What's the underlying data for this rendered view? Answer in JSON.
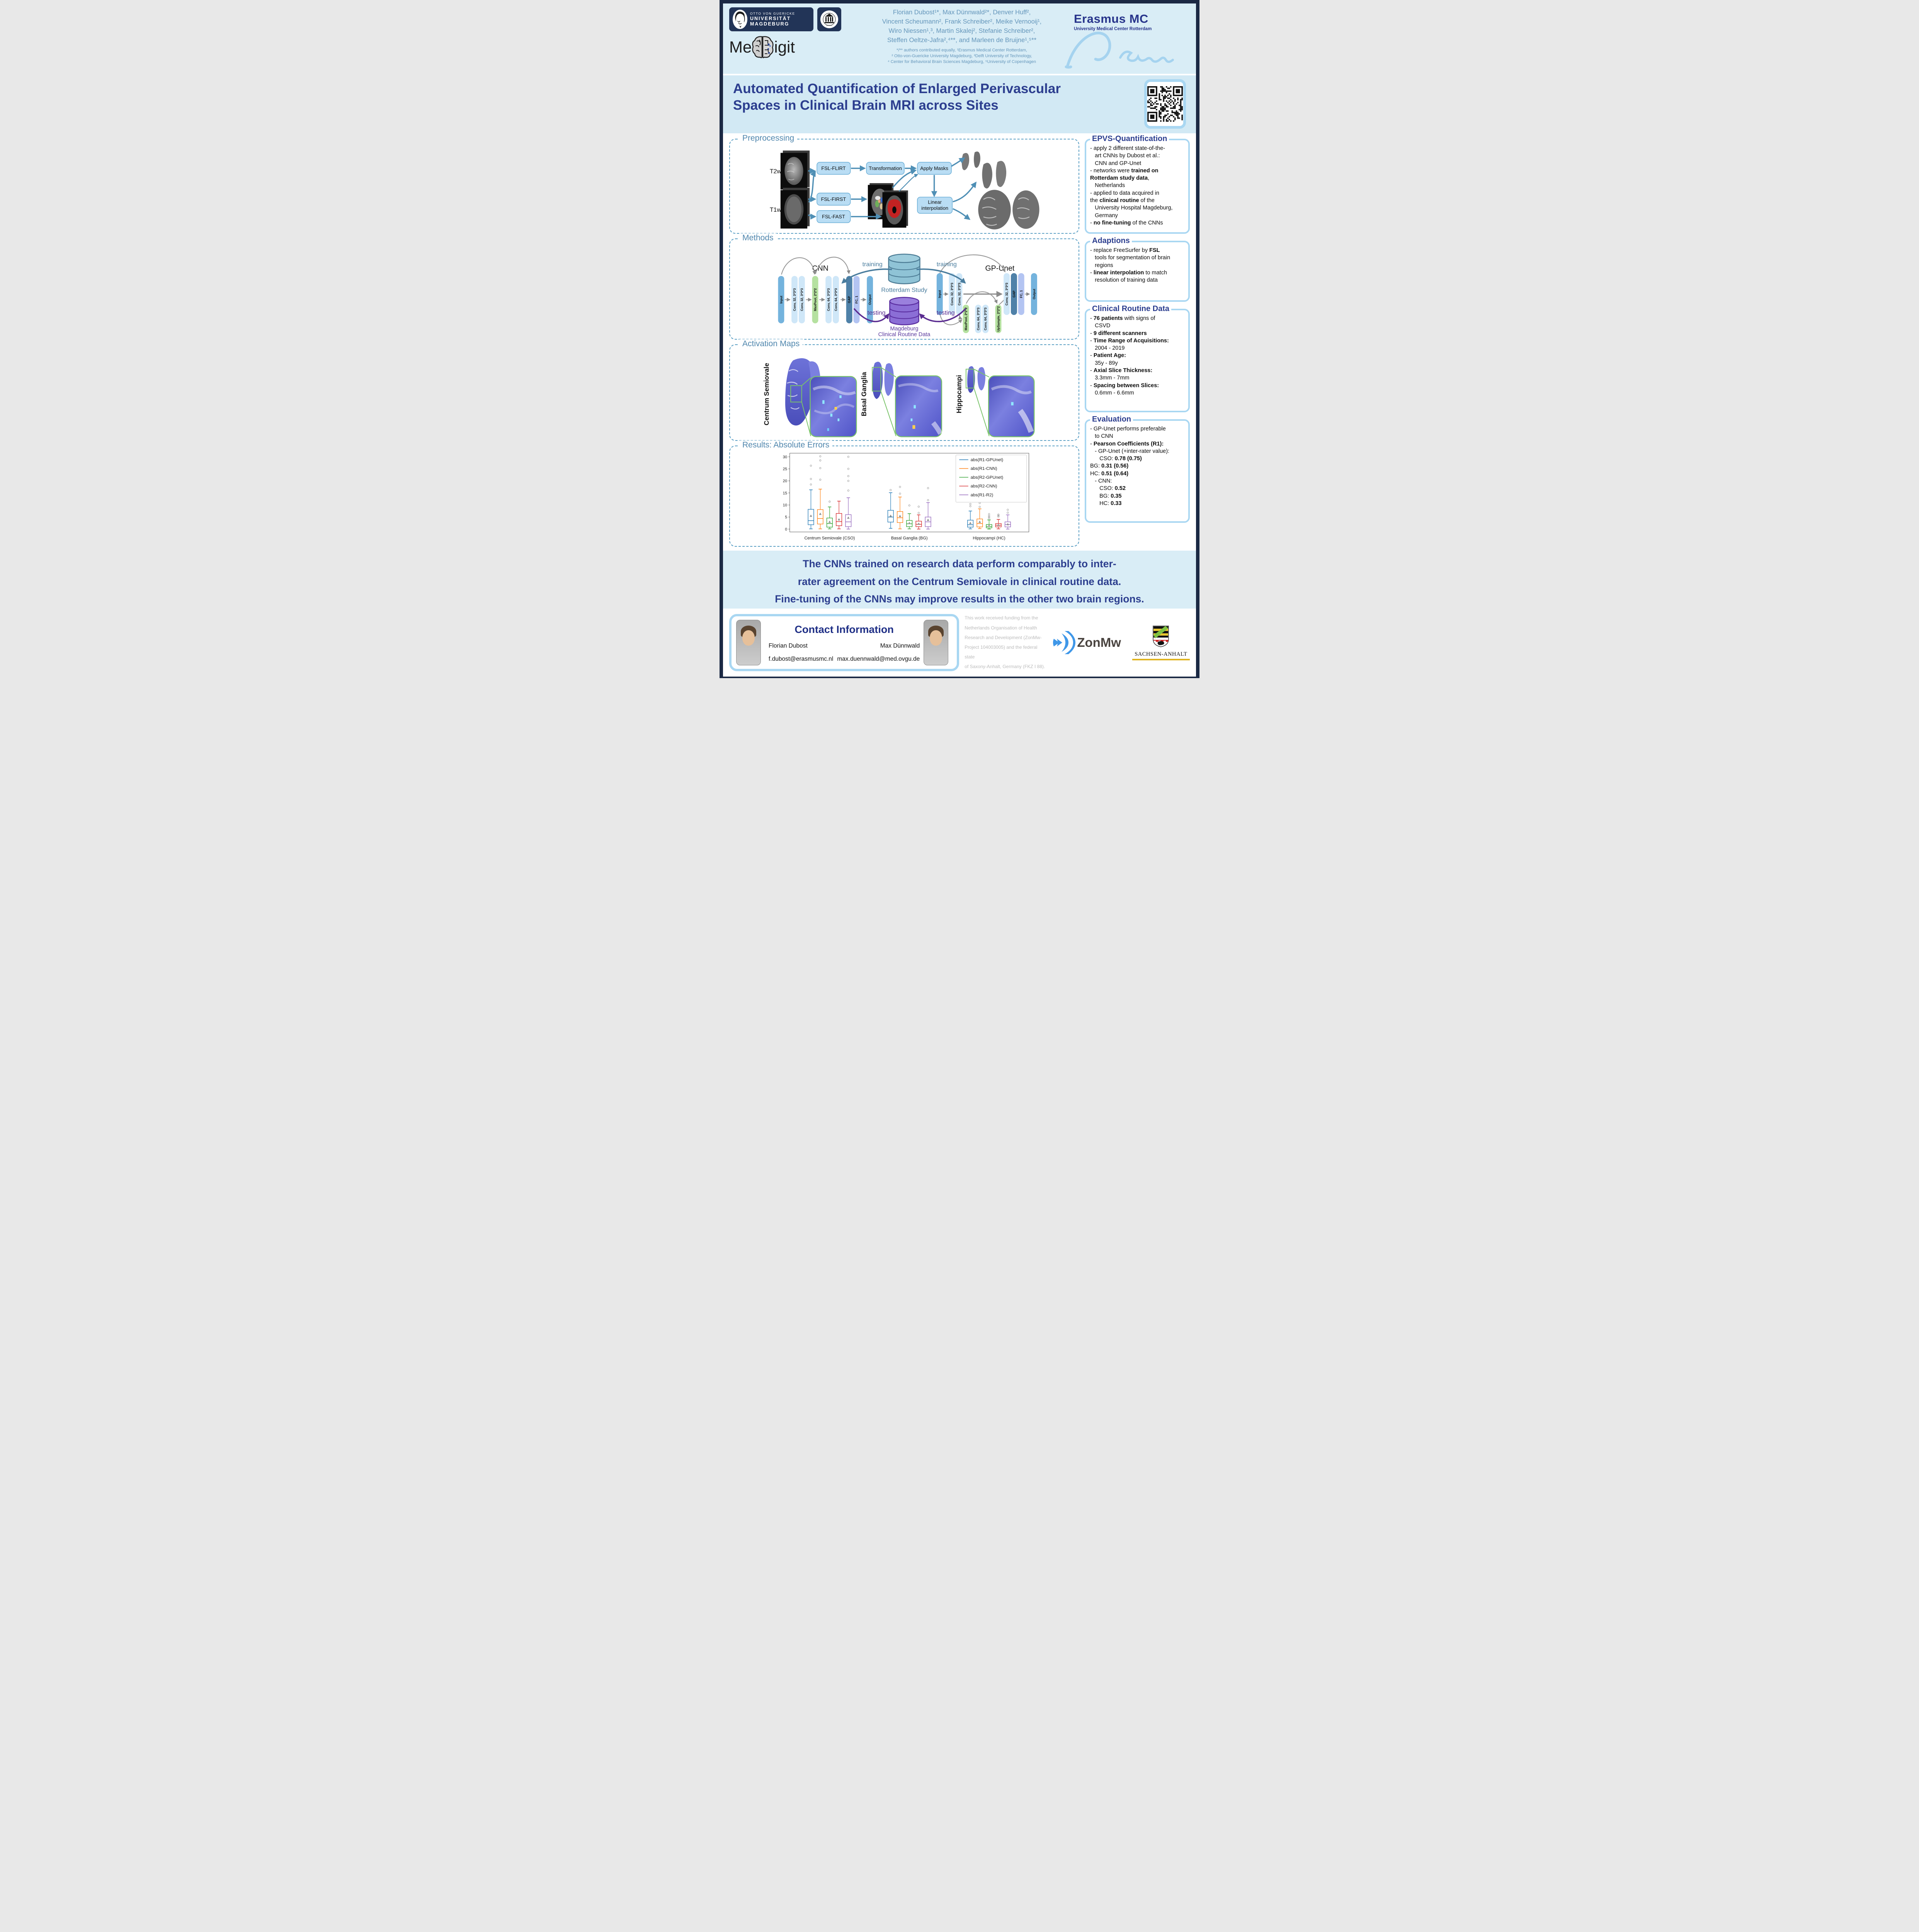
{
  "header": {
    "ovgu": {
      "l1": "OTTO VON GUERICKE",
      "l2": "UNIVERSITÄT",
      "l3": "MAGDEBURG"
    },
    "meddigit": {
      "pre": "Me",
      "post": "igit"
    },
    "erasmus": {
      "name": "Erasmus MC",
      "sub": "University Medical Center Rotterdam"
    },
    "authors_lines": [
      "Florian Dubost¹*, Max Dünnwald²*, Denver Huff²,",
      "Vincent Scheumann², Frank Schreiber², Meike Vernooij¹,",
      "Wiro Niessen¹,³, Martin Skalej², Stefanie Schreiber²,",
      "Steffen Oeltze-Jafra²,⁴**, and Marleen de Bruijne¹,⁵**"
    ],
    "affil_lines": [
      "*/** authors contributed equally, ¹Erasmus Medical Center Rotterdam,",
      "² Otto-von-Guericke University Magdeburg, ³Delft University of Technology,",
      "⁴ Center for Behavioral Brain Sciences Magdeburg, ⁵University of Copenhagen"
    ]
  },
  "title": "Automated Quantification of Enlarged Perivascular Spaces in Clinical Brain MRI across Sites",
  "sections": {
    "preprocessing": {
      "label": "Preprocessing",
      "t2w": "T2w",
      "t1w": "T1w",
      "boxes": {
        "flirt": "FSL-FLIRT",
        "transformation": "Transformation",
        "apply_masks": "Apply Masks",
        "first": "FSL-FIRST",
        "fast": "FSL-FAST",
        "linear1": "Linear",
        "linear2": "interpolation"
      }
    },
    "methods": {
      "label": "Methods",
      "cnn_title": "CNN",
      "gpunet_title": "GP-Unet",
      "training": "training",
      "testing": "testing",
      "rotterdam": "Rotterdam Study",
      "magdeburg_l1": "Magdeburg",
      "magdeburg_l2": "Clinical Routine Data",
      "cnn_layers": [
        {
          "label": "Input",
          "type": "io"
        },
        {
          "label": "Conv, 32, 3*3*3",
          "type": "conv"
        },
        {
          "label": "Conv, 32, 3*3*3",
          "type": "conv"
        },
        {
          "label": "MaxPool, 2*2*2",
          "type": "pool"
        },
        {
          "label": "Conv, 64, 3*3*3",
          "type": "conv"
        },
        {
          "label": "Conv, 64, 3*3*3",
          "type": "conv"
        },
        {
          "label": "GAP",
          "type": "gap"
        },
        {
          "label": "FC, 1",
          "type": "fc"
        },
        {
          "label": "Output",
          "type": "io"
        }
      ],
      "gpunet_top": [
        {
          "label": "Input",
          "type": "io"
        },
        {
          "label": "Conv, 32, 3*3*3",
          "type": "conv"
        },
        {
          "label": "Conv, 32, 3*3*3",
          "type": "conv"
        },
        {
          "label": "Conv, 32, 3*3*3",
          "type": "conv"
        },
        {
          "label": "GAP",
          "type": "gap"
        },
        {
          "label": "FC, 1",
          "type": "fc"
        },
        {
          "label": "Output",
          "type": "io"
        }
      ],
      "gpunet_bottom": [
        {
          "label": "MaxPool, 2*2*2",
          "type": "pool"
        },
        {
          "label": "Conv, 64, 3*3*3",
          "type": "conv"
        },
        {
          "label": "Conv, 64, 3*3*3",
          "type": "conv"
        },
        {
          "label": "UpSample, 2*2*2",
          "type": "pool"
        }
      ]
    },
    "activation": {
      "label": "Activation Maps",
      "regions": [
        "Centrum Semiovale",
        "Basal Ganglia",
        "Hippocampi"
      ]
    },
    "results": {
      "label": "Results: Absolute Errors"
    }
  },
  "panels": {
    "epvs": {
      "title": "EPVS-Quantification",
      "lines": [
        [
          {
            "t": "- apply 2 different state-of-the-"
          }
        ],
        [
          {
            "t": "   art CNNs by Dubost et al.:"
          }
        ],
        [
          {
            "t": "   CNN and GP-Unet"
          }
        ],
        [
          {
            "t": "- networks were "
          },
          {
            "t": "trained on",
            "b": true
          }
        ],
        [
          {
            "t": "Rotterdam study data",
            "b": true
          },
          {
            "t": ","
          }
        ],
        [
          {
            "t": "   Netherlands"
          }
        ],
        [
          {
            "t": "- applied to data acquired in"
          }
        ],
        [
          {
            "t": "the "
          },
          {
            "t": "clinical routine",
            "b": true
          },
          {
            "t": " of the"
          }
        ],
        [
          {
            "t": "   University Hospital Magdeburg,"
          }
        ],
        [
          {
            "t": "   Germany"
          }
        ],
        [
          {
            "t": "- "
          },
          {
            "t": "no fine-tuning",
            "b": true
          },
          {
            "t": " of the CNNs"
          }
        ]
      ]
    },
    "adaptions": {
      "title": "Adaptions",
      "lines": [
        [
          {
            "t": "- replace FreeSurfer by "
          },
          {
            "t": "FSL",
            "b": true
          }
        ],
        [
          {
            "t": "   tools for segmentation of brain"
          }
        ],
        [
          {
            "t": "   regions"
          }
        ],
        [
          {
            "t": "- "
          },
          {
            "t": "linear interpolation",
            "b": true
          },
          {
            "t": " to match"
          }
        ],
        [
          {
            "t": "   resolution of training data"
          }
        ]
      ]
    },
    "clinical": {
      "title": "Clinical Routine Data",
      "lines": [
        [
          {
            "t": "- "
          },
          {
            "t": "76 patients",
            "b": true
          },
          {
            "t": " with signs of"
          }
        ],
        [
          {
            "t": "   CSVD"
          }
        ],
        [
          {
            "t": "- "
          },
          {
            "t": "9 different scanners",
            "b": true
          }
        ],
        [
          {
            "t": "- "
          },
          {
            "t": "Time Range of Acquisitions:",
            "b": true
          }
        ],
        [
          {
            "t": "   2004 - 2019"
          }
        ],
        [
          {
            "t": "- "
          },
          {
            "t": "Patient Age:",
            "b": true
          }
        ],
        [
          {
            "t": "   35y - 89y"
          }
        ],
        [
          {
            "t": "- "
          },
          {
            "t": "Axial Slice Thickness:",
            "b": true
          }
        ],
        [
          {
            "t": "   3.3mm - 7mm"
          }
        ],
        [
          {
            "t": "- "
          },
          {
            "t": "Spacing between Slices:",
            "b": true
          }
        ],
        [
          {
            "t": "   0.6mm - 6.6mm"
          }
        ]
      ]
    },
    "evaluation": {
      "title": "Evaluation",
      "lines": [
        [
          {
            "t": "- GP-Unet performs preferable"
          }
        ],
        [
          {
            "t": "   to CNN"
          }
        ],
        [
          {
            "t": "- "
          },
          {
            "t": "Pearson Coefficients (R1):",
            "b": true
          }
        ],
        [
          {
            "t": "   - GP-Unet (+inter-rater value):"
          }
        ],
        [
          {
            "t": "      CSO: "
          },
          {
            "t": "0.78 (0.75)",
            "b": true
          }
        ],
        [
          {
            "t": "BG: "
          },
          {
            "t": "0.31 (0.56)",
            "b": true
          }
        ],
        [
          {
            "t": "HC: "
          },
          {
            "t": "0.51 (0.64)",
            "b": true
          }
        ],
        [
          {
            "t": "   - CNN:"
          }
        ],
        [
          {
            "t": "      CSO: "
          },
          {
            "t": "0.52",
            "b": true
          }
        ],
        [
          {
            "t": "      BG: "
          },
          {
            "t": "0.35",
            "b": true
          }
        ],
        [
          {
            "t": "      HC: "
          },
          {
            "t": "0.33",
            "b": true
          }
        ]
      ]
    }
  },
  "chart_data": {
    "type": "boxplot",
    "title": "Results: Absolute Errors",
    "categories": [
      "Centrum Semiovale (CSO)",
      "Basal Ganglia (BG)",
      "Hippocampi (HC)"
    ],
    "ylim": [
      0,
      30
    ],
    "yticks": [
      0,
      5,
      10,
      15,
      20,
      25,
      30
    ],
    "grid": false,
    "legend_position": "upper right",
    "series": [
      {
        "name": "abs(R1-GPUnet)",
        "color": "#1f77b4",
        "stats": [
          {
            "lo": 0.1,
            "q1": 1.8,
            "med": 3.5,
            "q3": 8.2,
            "hi": 16.3,
            "mean": 5.5,
            "out": [
              18.5,
              20.8,
              26.3
            ]
          },
          {
            "lo": 0.3,
            "q1": 2.9,
            "med": 5.0,
            "q3": 7.8,
            "hi": 15.1,
            "mean": 5.5,
            "out": [
              16.2
            ]
          },
          {
            "lo": 0.1,
            "q1": 0.8,
            "med": 1.8,
            "q3": 3.7,
            "hi": 7.5,
            "mean": 2.5,
            "out": [
              9.5,
              10.4,
              12.8
            ]
          }
        ]
      },
      {
        "name": "abs(R1-CNN)",
        "color": "#ff7f0e",
        "stats": [
          {
            "lo": 0.1,
            "q1": 2.1,
            "med": 4.4,
            "q3": 8.1,
            "hi": 16.6,
            "mean": 6.3,
            "out": [
              20.5,
              25.3,
              28.5,
              30.2
            ]
          },
          {
            "lo": 0.1,
            "q1": 2.7,
            "med": 4.7,
            "q3": 7.3,
            "hi": 13.3,
            "mean": 5.4,
            "out": [
              14.7,
              17.5
            ]
          },
          {
            "lo": 0.2,
            "q1": 0.9,
            "med": 2.3,
            "q3": 4.2,
            "hi": 8.4,
            "mean": 3.0,
            "out": [
              9.2,
              10.8,
              13.0
            ]
          }
        ]
      },
      {
        "name": "abs(R2-GPUnet)",
        "color": "#2ca02c",
        "stats": [
          {
            "lo": 0.1,
            "q1": 0.8,
            "med": 2.3,
            "q3": 4.6,
            "hi": 9.2,
            "mean": 3.0,
            "out": [
              11.4
            ]
          },
          {
            "lo": 0.1,
            "q1": 1.0,
            "med": 2.2,
            "q3": 3.6,
            "hi": 6.4,
            "mean": 2.5,
            "out": [
              9.8
            ]
          },
          {
            "lo": 0.0,
            "q1": 0.5,
            "med": 1.1,
            "q3": 1.9,
            "hi": 3.8,
            "mean": 1.4,
            "out": [
              4.5,
              5.0,
              5.5,
              6.2
            ]
          }
        ]
      },
      {
        "name": "abs(R2-CNN)",
        "color": "#d62728",
        "stats": [
          {
            "lo": 0.1,
            "q1": 1.4,
            "med": 3.1,
            "q3": 6.5,
            "hi": 11.6,
            "mean": 4.0,
            "out": []
          },
          {
            "lo": 0.0,
            "q1": 1.0,
            "med": 2.0,
            "q3": 3.3,
            "hi": 5.9,
            "mean": 2.2,
            "out": [
              6.7,
              9.3
            ]
          },
          {
            "lo": 0.1,
            "q1": 0.9,
            "med": 1.6,
            "q3": 2.3,
            "hi": 4.0,
            "mean": 1.7,
            "out": [
              5.2,
              5.6,
              6.0
            ]
          }
        ]
      },
      {
        "name": "abs(R1-R2)",
        "color": "#9467bd",
        "stats": [
          {
            "lo": 0.0,
            "q1": 1.0,
            "med": 3.0,
            "q3": 6.0,
            "hi": 13.0,
            "mean": 4.7,
            "out": [
              16.0,
              20.0,
              22.0,
              25.0,
              30.0
            ]
          },
          {
            "lo": 0.0,
            "q1": 1.0,
            "med": 3.0,
            "q3": 5.0,
            "hi": 11.0,
            "mean": 3.8,
            "out": [
              12.0,
              17.0
            ]
          },
          {
            "lo": 0.0,
            "q1": 0.9,
            "med": 1.9,
            "q3": 3.0,
            "hi": 5.9,
            "mean": 2.0,
            "out": [
              6.8,
              8.0
            ]
          }
        ]
      }
    ]
  },
  "conclusion_lines": [
    "The CNNs trained on research data perform comparably to inter-",
    "rater agreement on the Centrum Semiovale in clinical routine data.",
    "Fine-tuning of the CNNs may improve results in the other two brain regions."
  ],
  "footer": {
    "contact_title": "Contact Information",
    "person1": {
      "name": "Florian Dubost",
      "email": "f.dubost@erasmusmc.nl"
    },
    "person2": {
      "name": "Max Dünnwald",
      "email": "max.duennwald@med.ovgu.de"
    },
    "funding_lines": [
      "This work received funding from the",
      "Netherlands Organisation of Health",
      "Research and Development (ZonMw-",
      "Project 104003005) and the federal state",
      "of Saxony-Anhalt, Germany (FKZ I 88)."
    ],
    "zonmw": "ZonMw",
    "sachsen": "SACHSEN-ANHALT"
  },
  "colors": {
    "accent_navy": "#2c3e8f",
    "steel_blue": "#4f86ad",
    "panel_border": "#a9d7f2",
    "box_fill": "#b9ddf4",
    "box_border": "#6aaed6",
    "training": "#4a7d9e",
    "testing": "#5b2d91",
    "rotterdam_fill": "#8fc3d6",
    "magdeburg_fill": "#8b6ed6",
    "activation_green": "#7ac36a"
  }
}
